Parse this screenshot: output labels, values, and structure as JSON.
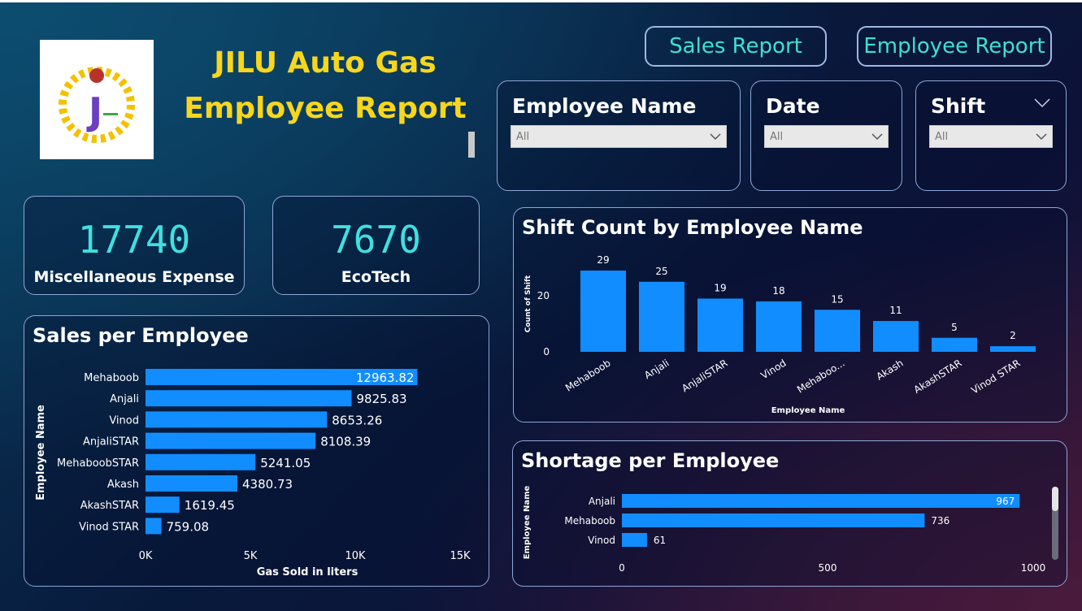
{
  "header": {
    "title_line1": "JILU Auto Gas",
    "title_line2": "Employee Report",
    "logo_text": "J"
  },
  "nav": {
    "sales_report": "Sales Report",
    "employee_report": "Employee Report"
  },
  "slicers": {
    "employee": {
      "label": "Employee Name",
      "value": "All"
    },
    "date": {
      "label": "Date",
      "value": "All"
    },
    "shift": {
      "label": "Shift",
      "value": "All"
    }
  },
  "kpis": [
    {
      "value": "17740",
      "label": "Miscellaneous Expense"
    },
    {
      "value": "7670",
      "label": "EcoTech"
    }
  ],
  "colors": {
    "bar": "#118dff",
    "title": "#f7d61c",
    "kpi": "#3fe0e0",
    "nav": "#3fe0d0"
  },
  "chart_data": [
    {
      "type": "bar",
      "orientation": "horizontal",
      "title": "Sales per Employee",
      "xlabel": "Gas Sold in liters",
      "ylabel": "Employee Name",
      "categories": [
        "Mehaboob",
        "Anjali",
        "Vinod",
        "AnjaliSTAR",
        "MehaboobSTAR",
        "Akash",
        "AkashSTAR",
        "Vinod STAR"
      ],
      "values": [
        12963.82,
        9825.83,
        8653.26,
        8108.39,
        5241.05,
        4380.73,
        1619.45,
        759.08
      ],
      "value_labels": [
        "12963.82",
        "9825.83",
        "8653.26",
        "8108.39",
        "5241.05",
        "4380.73",
        "1619.45",
        "759.08"
      ],
      "xticks": [
        "0K",
        "5K",
        "10K",
        "15K"
      ],
      "xlim": [
        0,
        15000
      ]
    },
    {
      "type": "bar",
      "orientation": "vertical",
      "title": "Shift Count by Employee Name",
      "xlabel": "Employee Name",
      "ylabel": "Count of Shift",
      "categories": [
        "Mehaboob",
        "Anjali",
        "AnjaliSTAR",
        "Vinod",
        "Mehaboo...",
        "Akash",
        "AkashSTAR",
        "Vinod STAR"
      ],
      "values": [
        29,
        25,
        19,
        18,
        15,
        11,
        5,
        2
      ],
      "yticks": [
        "0",
        "20"
      ],
      "ylim": [
        0,
        32
      ]
    },
    {
      "type": "bar",
      "orientation": "horizontal",
      "title": "Shortage per Employee",
      "xlabel": "",
      "ylabel": "Employee Name",
      "categories": [
        "Anjali",
        "Mehaboob",
        "Vinod"
      ],
      "values": [
        967,
        736,
        61
      ],
      "xticks": [
        "0",
        "500",
        "1000"
      ],
      "xlim": [
        0,
        1000
      ]
    }
  ]
}
